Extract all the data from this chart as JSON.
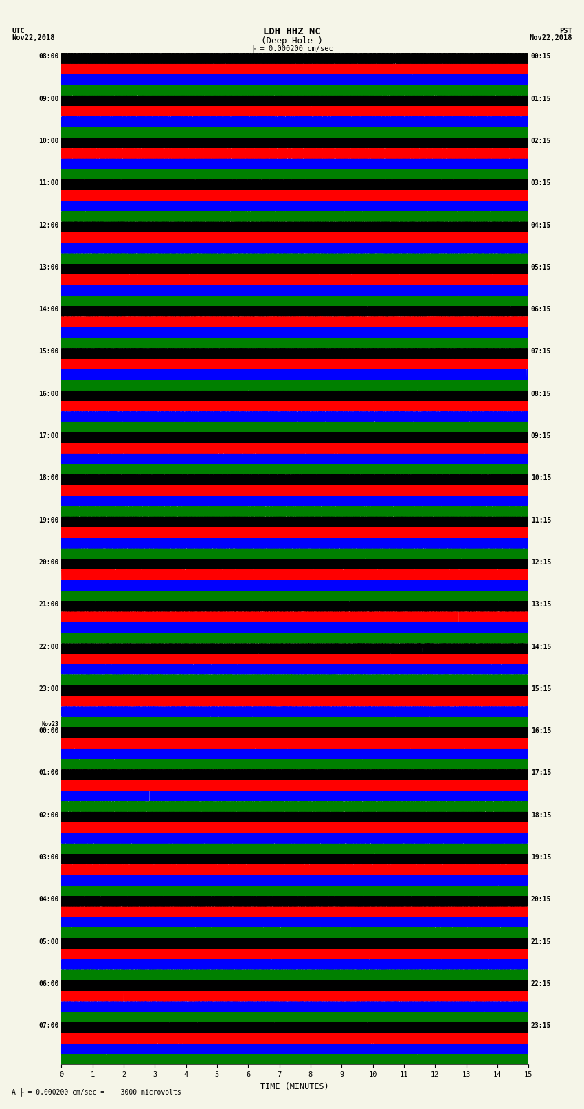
{
  "title_line1": "LDH HHZ NC",
  "title_line2": "(Deep Hole )",
  "utc_label": "UTC\nNov22,2018",
  "pst_label": "PST\nNov22,2018",
  "left_times": [
    "08:00",
    "09:00",
    "10:00",
    "11:00",
    "12:00",
    "13:00",
    "14:00",
    "15:00",
    "16:00",
    "17:00",
    "18:00",
    "19:00",
    "20:00",
    "21:00",
    "22:00",
    "23:00",
    "00:00",
    "01:00",
    "02:00",
    "03:00",
    "04:00",
    "05:00",
    "06:00",
    "07:00"
  ],
  "left_dates": [
    "",
    "",
    "",
    "",
    "",
    "",
    "",
    "",
    "",
    "",
    "",
    "",
    "",
    "",
    "",
    "",
    "Nov23",
    "",
    "",
    "",
    "",
    "",
    "",
    ""
  ],
  "right_times": [
    "00:15",
    "01:15",
    "02:15",
    "03:15",
    "04:15",
    "05:15",
    "06:15",
    "07:15",
    "08:15",
    "09:15",
    "10:15",
    "11:15",
    "12:15",
    "13:15",
    "14:15",
    "15:15",
    "16:15",
    "17:15",
    "18:15",
    "19:15",
    "20:15",
    "21:15",
    "22:15",
    "23:15"
  ],
  "colors": [
    "black",
    "red",
    "blue",
    "green"
  ],
  "n_traces_per_hour": 4,
  "n_hours": 24,
  "trace_duration_minutes": 15,
  "fig_width": 8.5,
  "fig_height": 16.13,
  "background_color": "#f5f5e8",
  "xlabel": "TIME (MINUTES)",
  "xticks": [
    0,
    1,
    2,
    3,
    4,
    5,
    6,
    7,
    8,
    9,
    10,
    11,
    12,
    13,
    14,
    15
  ],
  "amp_profiles": [
    0.9,
    2.2,
    1.5,
    1.0,
    0.8,
    2.0,
    1.4,
    0.9,
    0.8,
    1.8,
    1.3,
    0.9,
    0.9,
    2.5,
    2.8,
    3.2,
    3.5,
    2.8,
    2.2,
    1.8,
    1.5,
    1.4,
    1.3,
    1.2
  ]
}
